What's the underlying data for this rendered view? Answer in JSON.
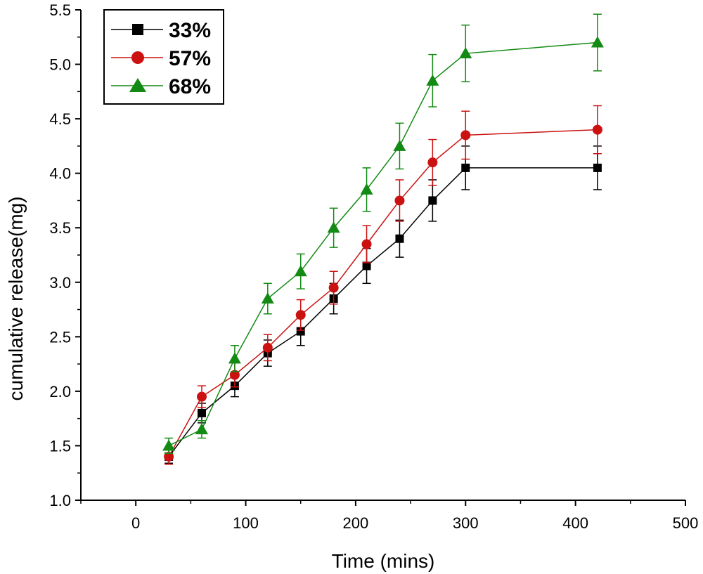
{
  "chart_data": {
    "type": "line",
    "xlabel": "Time (mins)",
    "ylabel": "cumulative release(mg)",
    "xlim": [
      -50,
      500
    ],
    "ylim": [
      1.0,
      5.5
    ],
    "x_ticks": [
      0,
      100,
      200,
      300,
      400,
      500
    ],
    "y_ticks": [
      "1.0",
      "1.5",
      "2.0",
      "2.5",
      "3.0",
      "3.5",
      "4.0",
      "4.5",
      "5.0",
      "5.5"
    ],
    "grid": false,
    "legend_position": "top-left",
    "x": [
      30,
      60,
      90,
      120,
      150,
      180,
      210,
      240,
      270,
      300,
      420
    ],
    "series": [
      {
        "name": "33%",
        "color": "#000000",
        "marker": "square",
        "values": [
          1.4,
          1.8,
          2.05,
          2.35,
          2.55,
          2.85,
          3.15,
          3.4,
          3.75,
          4.05,
          4.05
        ],
        "errors": [
          0.06,
          0.09,
          0.1,
          0.12,
          0.13,
          0.14,
          0.16,
          0.17,
          0.19,
          0.2,
          0.2
        ]
      },
      {
        "name": "57%",
        "color": "#cc1111",
        "marker": "circle",
        "values": [
          1.4,
          1.95,
          2.15,
          2.4,
          2.7,
          2.95,
          3.35,
          3.75,
          4.1,
          4.35,
          4.4
        ],
        "errors": [
          0.07,
          0.1,
          0.11,
          0.12,
          0.14,
          0.15,
          0.17,
          0.19,
          0.21,
          0.22,
          0.22
        ]
      },
      {
        "name": "68%",
        "color": "#138a13",
        "marker": "triangle",
        "values": [
          1.5,
          1.65,
          2.3,
          2.85,
          3.1,
          3.5,
          3.85,
          4.25,
          4.85,
          5.1,
          5.2
        ],
        "errors": [
          0.07,
          0.08,
          0.12,
          0.14,
          0.16,
          0.18,
          0.2,
          0.21,
          0.24,
          0.26,
          0.26
        ]
      }
    ]
  }
}
